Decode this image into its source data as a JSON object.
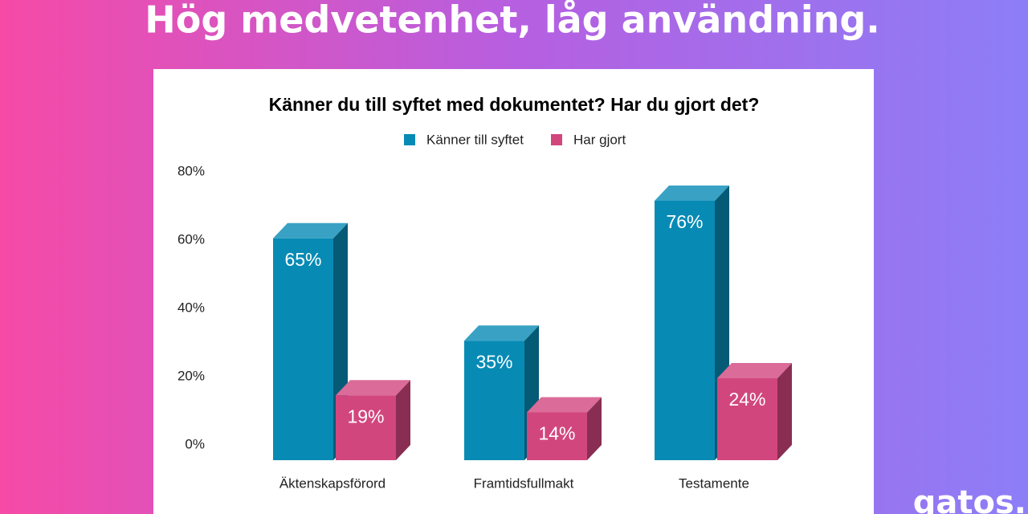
{
  "header": {
    "title": "Hög medvetenhet, låg användning."
  },
  "logo": "gatos.",
  "chart_data": {
    "type": "bar3d",
    "title": "Känner du till syftet med dokumentet? Har du gjort det?",
    "categories": [
      "Äktenskapsförord",
      "Framtidsfullmakt",
      "Testamente"
    ],
    "series": [
      {
        "name": "Känner till syftet",
        "color": "#078bb5",
        "values": [
          65,
          35,
          76
        ],
        "value_labels": [
          "65%",
          "35%",
          "76%"
        ]
      },
      {
        "name": "Har gjort",
        "color": "#d2467e",
        "values": [
          19,
          14,
          24
        ],
        "value_labels": [
          "19%",
          "14%",
          "24%"
        ]
      }
    ],
    "ylim": [
      0,
      80
    ],
    "yticks": [
      {
        "value": 0,
        "label": "0%"
      },
      {
        "value": 20,
        "label": "20%"
      },
      {
        "value": 40,
        "label": "40%"
      },
      {
        "value": 60,
        "label": "60%"
      },
      {
        "value": 80,
        "label": "80%"
      }
    ],
    "legend": "top"
  }
}
